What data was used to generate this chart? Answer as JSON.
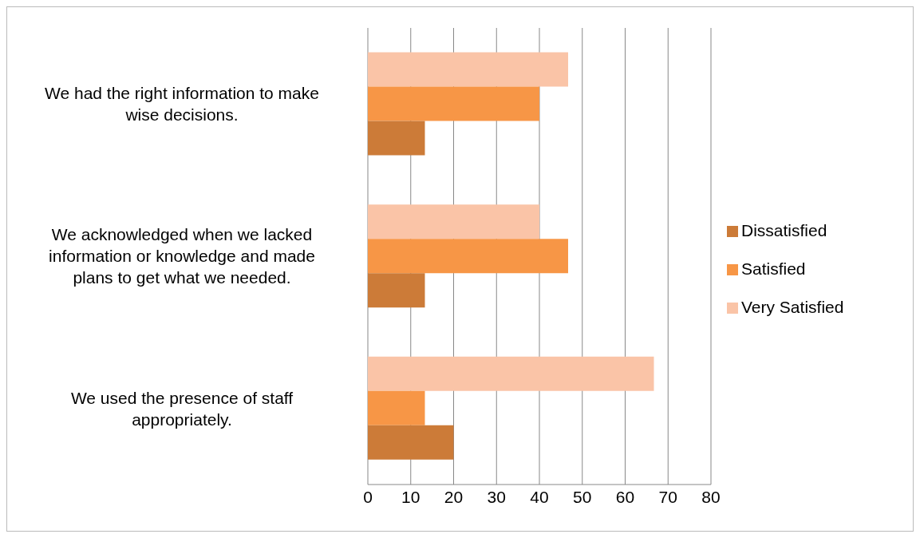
{
  "chart_data": {
    "type": "bar",
    "orientation": "horizontal",
    "categories": [
      "We had the right information to make wise decisions.",
      "We acknowledged when we lacked information or knowledge and made plans to get what we needed.",
      "We used the presence of staff appropriately."
    ],
    "series": [
      {
        "name": "Very Satisfied",
        "color": "#fac4a7",
        "values": [
          46.7,
          40,
          66.7
        ]
      },
      {
        "name": "Satisfied",
        "color": "#f79646",
        "values": [
          40,
          46.7,
          13.3
        ]
      },
      {
        "name": "Dissatisfied",
        "color": "#cc7b38",
        "values": [
          13.3,
          13.3,
          20
        ]
      }
    ],
    "xlim": [
      0,
      80
    ],
    "xticks": [
      0,
      10,
      20,
      30,
      40,
      50,
      60,
      70,
      80
    ],
    "grid": "x",
    "legend": "right"
  }
}
